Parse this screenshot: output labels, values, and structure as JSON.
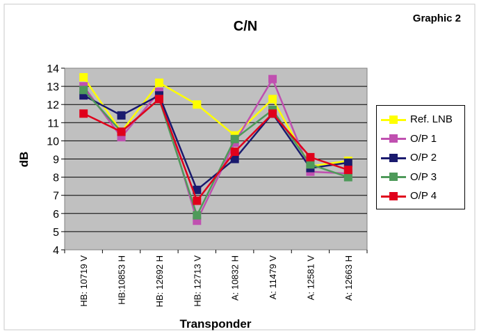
{
  "caption": "Graphic 2",
  "chart_data": {
    "type": "line",
    "title": "C/N",
    "xlabel": "Transponder",
    "ylabel": "dB",
    "ylim": [
      4,
      14
    ],
    "yticks": [
      4,
      5,
      6,
      7,
      8,
      9,
      10,
      11,
      12,
      13,
      14
    ],
    "grid": true,
    "legend_position": "right",
    "categories": [
      "HB: 10719 V",
      "HB:10853 H",
      "HB: 12692 H",
      "HB: 12713 V",
      "A: 10832 H",
      "A: 11479 V",
      "A: 12581 V",
      "A: 12663 H"
    ],
    "series": [
      {
        "name": "Ref. LNB",
        "color": "#ffff00",
        "values": [
          13.5,
          10.5,
          13.2,
          12.0,
          10.3,
          12.3,
          8.6,
          8.9
        ]
      },
      {
        "name": "O/P 1",
        "color": "#c050b0",
        "values": [
          13.0,
          10.2,
          12.7,
          5.6,
          9.9,
          13.4,
          8.3,
          8.2
        ]
      },
      {
        "name": "O/P 2",
        "color": "#1a1a6e",
        "values": [
          12.5,
          11.4,
          12.5,
          7.3,
          9.0,
          11.5,
          8.5,
          8.8
        ]
      },
      {
        "name": "O/P 3",
        "color": "#4e9a5a",
        "values": [
          12.8,
          10.5,
          12.3,
          5.9,
          10.1,
          11.7,
          8.7,
          8.0
        ]
      },
      {
        "name": "O/P 4",
        "color": "#e0001b",
        "values": [
          11.5,
          10.5,
          12.3,
          6.7,
          9.4,
          11.5,
          9.1,
          8.4
        ]
      }
    ]
  }
}
